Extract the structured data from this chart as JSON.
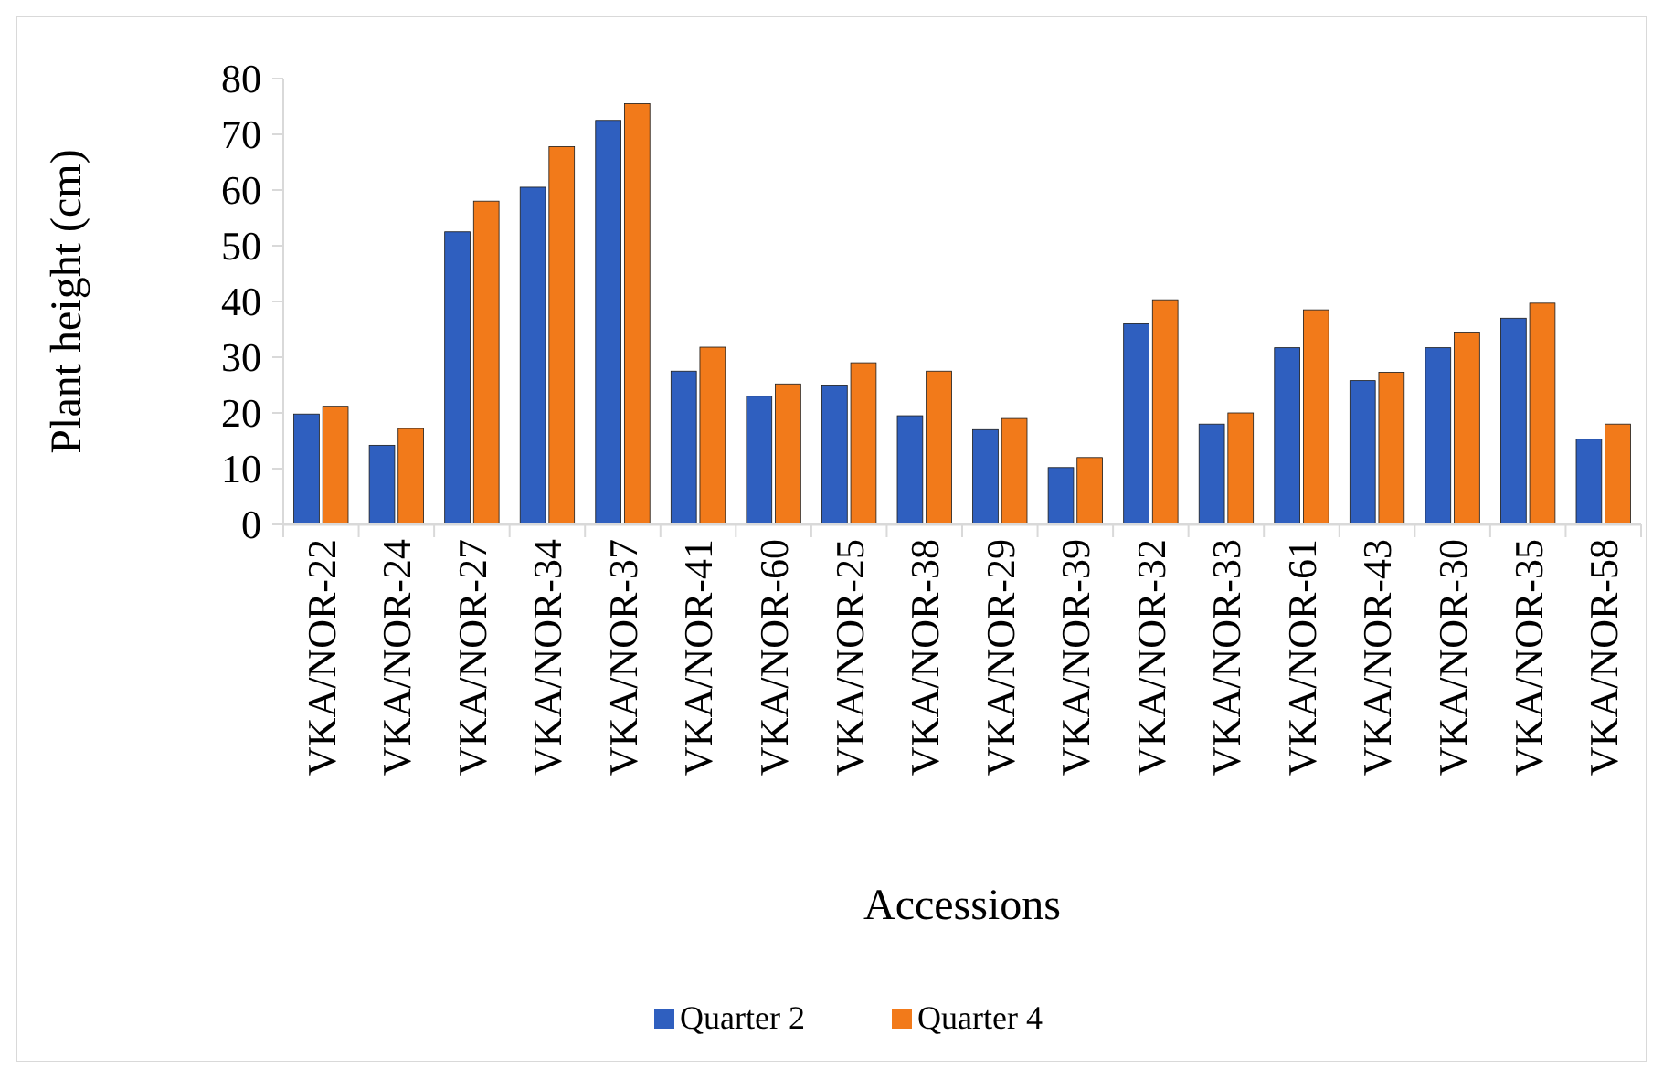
{
  "chart_data": {
    "type": "bar",
    "xlabel": "Accessions",
    "ylabel": "Plant  height (cm)",
    "categories": [
      "VKA/NOR-22",
      "VKA/NOR-24",
      "VKA/NOR-27",
      "VKA/NOR-34",
      "VKA/NOR-37",
      "VKA/NOR-41",
      "VKA/NOR-60",
      "VKA/NOR-25",
      "VKA/NOR-38",
      "VKA/NOR-29",
      "VKA/NOR-39",
      "VKA/NOR-32",
      "VKA/NOR-33",
      "VKA/NOR-61",
      "VKA/NOR-43",
      "VKA/NOR-30",
      "VKA/NOR-35",
      "VKA/NOR-58"
    ],
    "series": [
      {
        "name": "Quarter 2",
        "color": "#2f5fbf",
        "values": [
          19.8,
          14.2,
          52.5,
          60.5,
          72.5,
          27.5,
          23,
          25,
          19.5,
          17,
          10.2,
          36,
          18,
          31.7,
          25.8,
          31.7,
          37,
          15.3
        ]
      },
      {
        "name": "Quarter 4",
        "color": "#f27a1a",
        "values": [
          21.2,
          17.2,
          58,
          67.8,
          75.5,
          31.8,
          25.2,
          29,
          27.5,
          19,
          12,
          40.3,
          20,
          38.5,
          27.3,
          34.5,
          39.7,
          18
        ]
      }
    ],
    "ylim": [
      0,
      80
    ],
    "yticks": [
      0,
      10,
      20,
      30,
      40,
      50,
      60,
      70,
      80
    ],
    "grid": false,
    "legend": "bottom"
  }
}
